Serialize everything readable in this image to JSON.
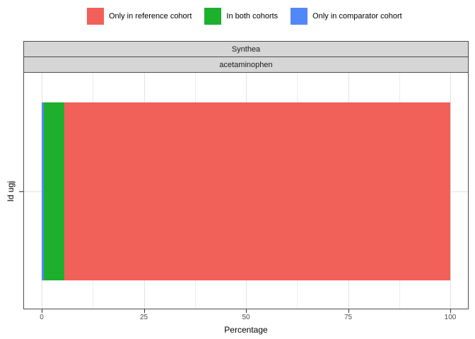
{
  "legend": {
    "items": [
      {
        "label": "Only in reference cohort",
        "color": "#F2605A"
      },
      {
        "label": "In both cohorts",
        "color": "#1CB02C"
      },
      {
        "label": "Only in comparator cohort",
        "color": "#5287F7"
      }
    ]
  },
  "facets": {
    "database": "Synthea",
    "cohort": "acetaminophen"
  },
  "axes": {
    "x_title": "Percentage",
    "y_title": "Id ugj",
    "x_tick_labels": [
      "0",
      "25",
      "50",
      "75",
      "100"
    ]
  },
  "colors": {
    "strip_bg": "#D6D6D6",
    "panel_border": "#4D4D4D",
    "grid_major": "#E2E2E2",
    "grid_minor": "#ECECEC",
    "tick_text": "#4D4D4D"
  },
  "chart_data": {
    "type": "bar",
    "orientation": "horizontal",
    "stacked": true,
    "facets": [
      "Synthea",
      "acetaminophen"
    ],
    "categories": [
      "Id ugj"
    ],
    "series": [
      {
        "name": "Only in comparator cohort",
        "color": "#5287F7",
        "values": [
          0.5
        ]
      },
      {
        "name": "In both cohorts",
        "color": "#1CB02C",
        "values": [
          5.0
        ]
      },
      {
        "name": "Only in reference cohort",
        "color": "#F2605A",
        "values": [
          94.5
        ]
      }
    ],
    "xlabel": "Percentage",
    "ylabel": "Id ugj",
    "xlim": [
      0,
      100
    ],
    "x_major_ticks": [
      0,
      25,
      50,
      75,
      100
    ],
    "x_minor_ticks": [
      12.5,
      37.5,
      62.5,
      87.5
    ],
    "grid": "vertical major+minor gridlines, one horizontal major gridline at bar center",
    "legend_position": "top"
  }
}
